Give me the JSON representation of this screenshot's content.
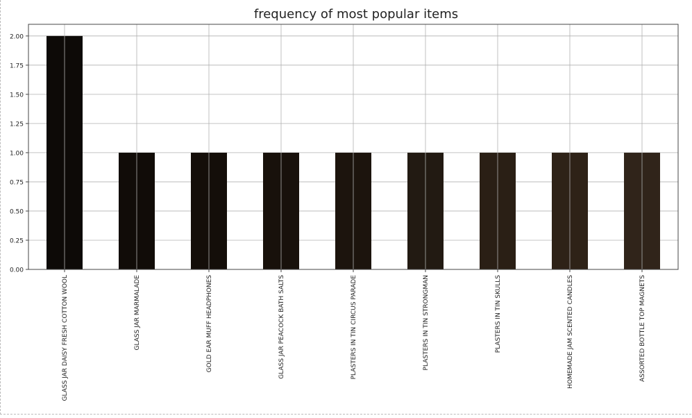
{
  "chart_data": {
    "type": "bar",
    "title": "frequency of most popular items",
    "xlabel": "",
    "ylabel": "",
    "categories": [
      "GLASS JAR DAISY FRESH COTTON WOOL",
      "GLASS JAR MARMALADE",
      "GOLD EAR MUFF HEADPHONES",
      "GLASS JAR PEACOCK BATH SALTS",
      "PLASTERS IN TIN CIRCUS PARADE",
      "PLASTERS IN TIN STRONGMAN",
      "PLASTERS IN TIN SKULLS",
      "HOMEMADE JAM SCENTED CANDLES",
      "ASSORTED BOTTLE TOP  MAGNETS"
    ],
    "values": [
      2,
      1,
      1,
      1,
      1,
      1,
      1,
      1,
      1
    ],
    "ylim": [
      0,
      2.1
    ],
    "yticks": [
      "0.00",
      "0.25",
      "0.50",
      "0.75",
      "1.00",
      "1.25",
      "1.50",
      "1.75",
      "2.00"
    ],
    "grid": true,
    "legend": "none",
    "bar_colors": [
      "#0d0a07",
      "#110c08",
      "#140e09",
      "#18110b",
      "#1c140d",
      "#221a12",
      "#2a1f15",
      "#2e2217",
      "#30241a"
    ],
    "grid_color": "#b0b0b0",
    "axes_color": "#444444"
  }
}
